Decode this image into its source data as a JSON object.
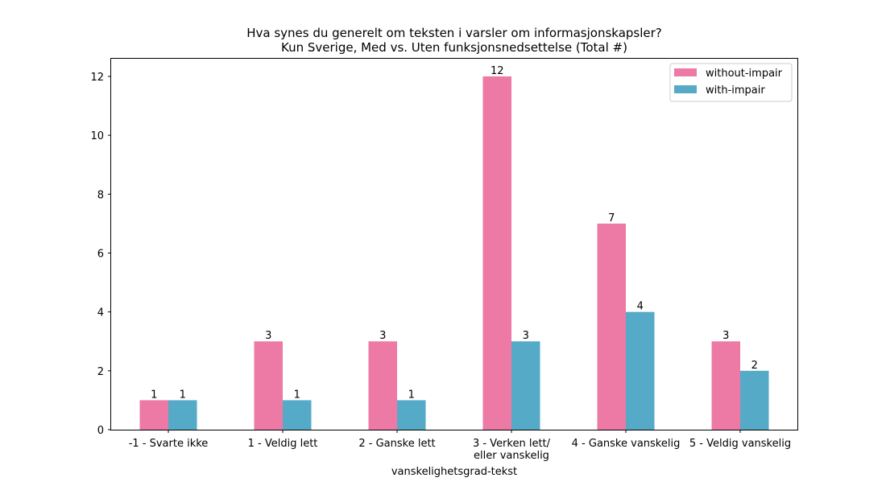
{
  "chart_data": {
    "type": "bar",
    "title": "Hva synes du generelt om teksten i varsler om informasjonskapsler?",
    "subtitle": "Kun Sverige, Med vs. Uten funksjonsnedsettelse (Total #)",
    "xlabel": "vanskelighetsgrad-tekst",
    "ylabel": "",
    "ylim": [
      0,
      12.6
    ],
    "yticks": [
      "0",
      "2",
      "4",
      "6",
      "8",
      "10",
      "12"
    ],
    "categories": [
      [
        "-1 - Svarte ikke"
      ],
      [
        "1 - Veldig lett"
      ],
      [
        "2 - Ganske lett"
      ],
      [
        "3 - Verken lett/",
        "eller vanskelig"
      ],
      [
        "4 - Ganske vanskelig"
      ],
      [
        "5 - Veldig vanskelig"
      ]
    ],
    "series": [
      {
        "name": "without-impair",
        "values": [
          1,
          3,
          3,
          12,
          7,
          3
        ],
        "color": "#ec7aa4"
      },
      {
        "name": "with-impair",
        "values": [
          1,
          1,
          1,
          3,
          4,
          2
        ],
        "color": "#55aac8"
      }
    ],
    "legend_position": "top-right",
    "grid": false
  }
}
